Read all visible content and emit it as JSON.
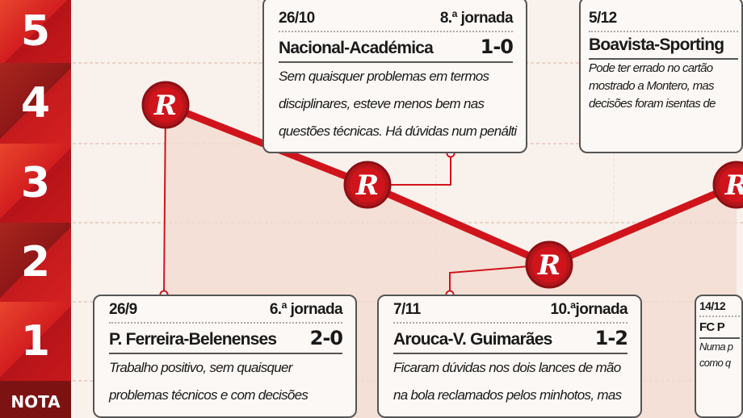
{
  "axis": {
    "labels": [
      "5",
      "4",
      "3",
      "2",
      "1"
    ],
    "footer": "NOTA"
  },
  "chart_data": {
    "type": "line",
    "title": "",
    "ylabel": "NOTA",
    "ylim": [
      1,
      5
    ],
    "categories": [
      "26/9",
      "26/10",
      "7/11",
      "5/12"
    ],
    "values": [
      4,
      3,
      2,
      3
    ],
    "marker_glyph": "R",
    "line_color": "#d0141b"
  },
  "matches": [
    {
      "date": "26/10",
      "round": "8.ª jornada",
      "teams": "Nacional-Académica",
      "score": "1-0",
      "comment": [
        "Sem quaisquer problemas em termos",
        "disciplinares, esteve menos bem nas",
        "questões técnicas. Há dúvidas num penálti"
      ]
    },
    {
      "date": "5/12",
      "round": "",
      "teams": "Boavista-Sporting",
      "score": "",
      "comment": [
        "Pode ter errado no cartão",
        "mostrado a Montero, mas",
        "decisões foram isentas de"
      ]
    },
    {
      "date": "26/9",
      "round": "6.ª jornada",
      "teams": "P. Ferreira-Belenenses",
      "score": "2-0",
      "comment": [
        "Trabalho positivo, sem quaisquer",
        "problemas técnicos e com decisões"
      ]
    },
    {
      "date": "7/11",
      "round": "10.ªjornada",
      "teams": "Arouca-V. Guimarães",
      "score": "1-2",
      "comment": [
        "Ficaram dúvidas nos dois lances de mão",
        "na bola reclamados pelos minhotos, mas"
      ]
    },
    {
      "date": "14/12",
      "round": "",
      "teams": "FC P",
      "score": "",
      "comment": [
        "Numa p",
        "como q"
      ]
    }
  ]
}
